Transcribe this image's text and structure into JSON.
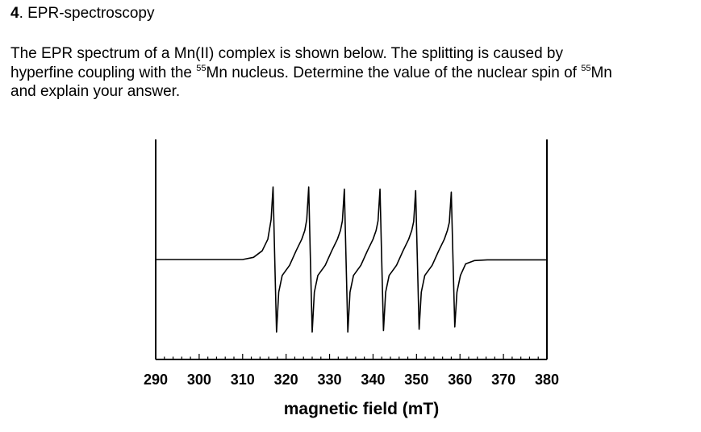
{
  "question": {
    "number": "4",
    "title": ". EPR-spectroscopy",
    "line1": "The EPR spectrum of a Mn(II) complex is shown below. The splitting is caused by",
    "line2_pre": "hyperfine coupling with the ",
    "sup1": "55",
    "line2_mid": "Mn nucleus. Determine the value of the nuclear spin of ",
    "sup2": "55",
    "line2_post": "Mn",
    "line3": "and explain your answer."
  },
  "chart_data": {
    "type": "line",
    "title": "",
    "xlabel": "magnetic field (mT)",
    "ylabel": "",
    "xlim": [
      290,
      380
    ],
    "ylim": [
      -1.1,
      1.1
    ],
    "xticks": [
      "290",
      "300",
      "310",
      "320",
      "330",
      "340",
      "350",
      "360",
      "370",
      "380"
    ],
    "grid": false,
    "series": [
      {
        "baseline": 0,
        "lines": [
          {
            "center": 321.0,
            "positive_peak_x": 317.0,
            "positive_peak_y": 1.0,
            "negative_peak_x": 317.8,
            "negative_peak_y": -1.0
          },
          {
            "center": 329.3,
            "positive_peak_x": 325.2,
            "positive_peak_y": 1.0,
            "negative_peak_x": 326.0,
            "negative_peak_y": -1.0
          },
          {
            "center": 337.6,
            "positive_peak_x": 333.4,
            "positive_peak_y": 0.97,
            "negative_peak_x": 334.2,
            "negative_peak_y": -1.0
          },
          {
            "center": 345.9,
            "positive_peak_x": 341.6,
            "positive_peak_y": 0.97,
            "negative_peak_x": 342.4,
            "negative_peak_y": -0.98
          },
          {
            "center": 354.2,
            "positive_peak_x": 349.8,
            "positive_peak_y": 0.95,
            "negative_peak_x": 350.6,
            "negative_peak_y": -0.96
          },
          {
            "center": 362.5,
            "positive_peak_x": 358.0,
            "positive_peak_y": 0.93,
            "negative_peak_x": 358.8,
            "negative_peak_y": -0.93
          }
        ]
      }
    ]
  }
}
